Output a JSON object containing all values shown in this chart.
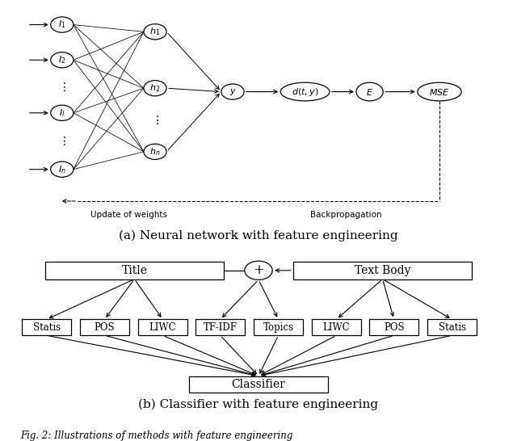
{
  "title_a": "(a) Neural network with feature engineering",
  "title_b": "(b) Classifier with feature engineering",
  "fig_caption": "Fig. 2: Illustrations of methods with feature engineering",
  "background_color": "#ffffff"
}
